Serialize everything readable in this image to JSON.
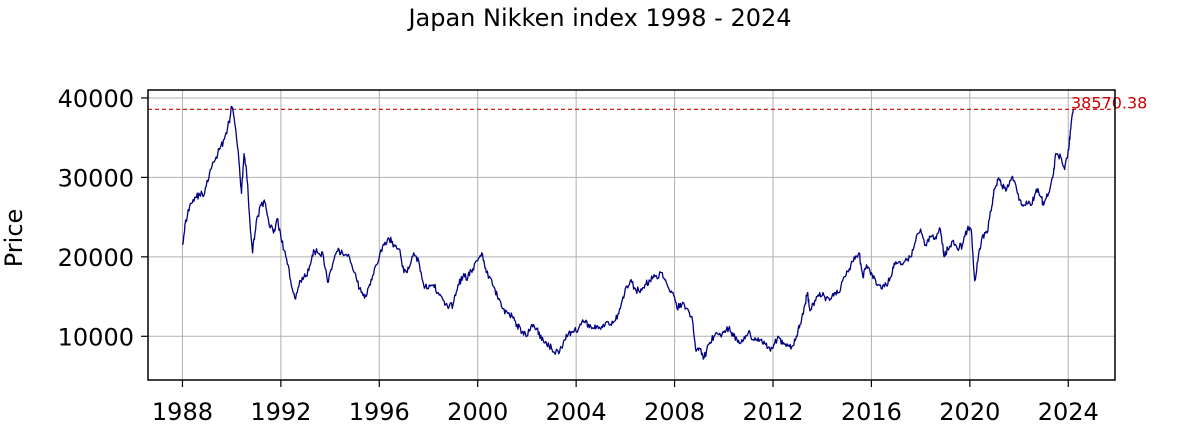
{
  "chart_data": {
    "type": "line",
    "title": "Japan Nikken index 1998 - 2024",
    "xlabel": "",
    "ylabel": "Price",
    "xlim": [
      1986.6,
      2025.9
    ],
    "ylim": [
      4500,
      41000
    ],
    "grid": true,
    "x_ticks": [
      1988,
      1992,
      1996,
      2000,
      2004,
      2008,
      2012,
      2016,
      2020,
      2024
    ],
    "x_tick_labels": [
      "1988",
      "1992",
      "1996",
      "2000",
      "2004",
      "2008",
      "2012",
      "2016",
      "2020",
      "2024"
    ],
    "y_ticks": [
      10000,
      20000,
      30000,
      40000
    ],
    "y_tick_labels": [
      "10000",
      "20000",
      "30000",
      "40000"
    ],
    "series": [
      {
        "color": "#000080",
        "points": [
          [
            1988.0,
            21500
          ],
          [
            1988.1,
            24000
          ],
          [
            1988.3,
            26500
          ],
          [
            1988.5,
            27500
          ],
          [
            1988.7,
            27800
          ],
          [
            1988.9,
            28000
          ],
          [
            1989.1,
            30500
          ],
          [
            1989.3,
            32000
          ],
          [
            1989.5,
            33500
          ],
          [
            1989.7,
            34800
          ],
          [
            1989.9,
            37000
          ],
          [
            1990.0,
            38900
          ],
          [
            1990.1,
            37500
          ],
          [
            1990.3,
            32000
          ],
          [
            1990.4,
            28000
          ],
          [
            1990.5,
            33000
          ],
          [
            1990.6,
            31000
          ],
          [
            1990.75,
            24000
          ],
          [
            1990.85,
            20500
          ],
          [
            1991.0,
            24500
          ],
          [
            1991.2,
            26500
          ],
          [
            1991.35,
            26800
          ],
          [
            1991.5,
            24500
          ],
          [
            1991.7,
            23000
          ],
          [
            1991.85,
            24800
          ],
          [
            1992.0,
            22500
          ],
          [
            1992.2,
            20000
          ],
          [
            1992.4,
            17000
          ],
          [
            1992.6,
            14700
          ],
          [
            1992.8,
            17000
          ],
          [
            1993.0,
            17500
          ],
          [
            1993.2,
            19000
          ],
          [
            1993.35,
            20800
          ],
          [
            1993.5,
            20500
          ],
          [
            1993.7,
            20500
          ],
          [
            1993.9,
            16800
          ],
          [
            1994.1,
            19000
          ],
          [
            1994.3,
            20700
          ],
          [
            1994.5,
            20500
          ],
          [
            1994.8,
            19800
          ],
          [
            1995.0,
            18000
          ],
          [
            1995.2,
            16000
          ],
          [
            1995.4,
            14800
          ],
          [
            1995.6,
            16500
          ],
          [
            1995.8,
            18500
          ],
          [
            1996.0,
            20000
          ],
          [
            1996.2,
            21500
          ],
          [
            1996.4,
            22300
          ],
          [
            1996.6,
            21500
          ],
          [
            1996.8,
            21000
          ],
          [
            1997.0,
            18000
          ],
          [
            1997.2,
            18500
          ],
          [
            1997.4,
            20500
          ],
          [
            1997.6,
            19500
          ],
          [
            1997.8,
            16500
          ],
          [
            1998.0,
            16000
          ],
          [
            1998.2,
            16500
          ],
          [
            1998.4,
            15500
          ],
          [
            1998.6,
            14500
          ],
          [
            1998.8,
            13500
          ],
          [
            1999.0,
            14000
          ],
          [
            1999.2,
            16500
          ],
          [
            1999.4,
            17500
          ],
          [
            1999.6,
            17500
          ],
          [
            1999.8,
            18500
          ],
          [
            2000.0,
            19500
          ],
          [
            2000.2,
            20300
          ],
          [
            2000.35,
            18000
          ],
          [
            2000.6,
            16500
          ],
          [
            2000.8,
            15000
          ],
          [
            2001.0,
            13500
          ],
          [
            2001.2,
            13000
          ],
          [
            2001.4,
            12500
          ],
          [
            2001.6,
            11500
          ],
          [
            2001.8,
            10500
          ],
          [
            2002.0,
            10000
          ],
          [
            2002.2,
            11500
          ],
          [
            2002.4,
            11000
          ],
          [
            2002.6,
            9500
          ],
          [
            2002.8,
            9000
          ],
          [
            2003.0,
            8500
          ],
          [
            2003.3,
            7800
          ],
          [
            2003.5,
            9500
          ],
          [
            2003.7,
            10500
          ],
          [
            2003.9,
            10500
          ],
          [
            2004.1,
            11000
          ],
          [
            2004.3,
            11800
          ],
          [
            2004.5,
            11500
          ],
          [
            2004.7,
            11000
          ],
          [
            2004.9,
            11000
          ],
          [
            2005.1,
            11500
          ],
          [
            2005.4,
            11500
          ],
          [
            2005.6,
            12000
          ],
          [
            2005.8,
            13500
          ],
          [
            2006.0,
            16000
          ],
          [
            2006.2,
            17000
          ],
          [
            2006.4,
            16000
          ],
          [
            2006.6,
            15500
          ],
          [
            2006.8,
            16500
          ],
          [
            2007.0,
            17000
          ],
          [
            2007.2,
            17500
          ],
          [
            2007.5,
            18000
          ],
          [
            2007.7,
            16500
          ],
          [
            2007.9,
            15500
          ],
          [
            2008.1,
            13500
          ],
          [
            2008.3,
            14000
          ],
          [
            2008.5,
            13500
          ],
          [
            2008.7,
            12500
          ],
          [
            2008.85,
            8500
          ],
          [
            2009.0,
            8500
          ],
          [
            2009.2,
            7300
          ],
          [
            2009.4,
            9000
          ],
          [
            2009.6,
            10000
          ],
          [
            2009.8,
            10200
          ],
          [
            2010.0,
            10500
          ],
          [
            2010.2,
            11000
          ],
          [
            2010.4,
            10000
          ],
          [
            2010.6,
            9500
          ],
          [
            2010.8,
            9500
          ],
          [
            2011.0,
            10500
          ],
          [
            2011.2,
            9600
          ],
          [
            2011.4,
            9800
          ],
          [
            2011.6,
            9000
          ],
          [
            2011.8,
            8600
          ],
          [
            2012.0,
            8500
          ],
          [
            2012.2,
            10000
          ],
          [
            2012.4,
            9000
          ],
          [
            2012.6,
            8800
          ],
          [
            2012.8,
            8800
          ],
          [
            2012.95,
            10000
          ],
          [
            2013.1,
            11500
          ],
          [
            2013.3,
            14000
          ],
          [
            2013.4,
            15500
          ],
          [
            2013.5,
            13200
          ],
          [
            2013.7,
            14500
          ],
          [
            2013.9,
            15500
          ],
          [
            2014.1,
            15000
          ],
          [
            2014.3,
            14500
          ],
          [
            2014.5,
            15500
          ],
          [
            2014.7,
            15500
          ],
          [
            2014.9,
            17500
          ],
          [
            2015.1,
            18500
          ],
          [
            2015.3,
            20000
          ],
          [
            2015.5,
            20500
          ],
          [
            2015.65,
            17500
          ],
          [
            2015.8,
            19000
          ],
          [
            2016.0,
            18000
          ],
          [
            2016.2,
            16500
          ],
          [
            2016.4,
            16000
          ],
          [
            2016.6,
            16500
          ],
          [
            2016.8,
            17500
          ],
          [
            2016.95,
            19000
          ],
          [
            2017.2,
            19000
          ],
          [
            2017.4,
            19800
          ],
          [
            2017.6,
            20000
          ],
          [
            2017.8,
            22000
          ],
          [
            2018.0,
            23500
          ],
          [
            2018.2,
            21500
          ],
          [
            2018.4,
            22500
          ],
          [
            2018.6,
            22500
          ],
          [
            2018.8,
            23500
          ],
          [
            2018.95,
            20000
          ],
          [
            2019.1,
            21000
          ],
          [
            2019.3,
            22000
          ],
          [
            2019.5,
            21000
          ],
          [
            2019.7,
            21500
          ],
          [
            2019.9,
            23500
          ],
          [
            2020.05,
            23500
          ],
          [
            2020.2,
            17000
          ],
          [
            2020.35,
            20000
          ],
          [
            2020.5,
            22500
          ],
          [
            2020.7,
            23000
          ],
          [
            2020.9,
            26500
          ],
          [
            2021.0,
            28500
          ],
          [
            2021.15,
            29800
          ],
          [
            2021.3,
            29000
          ],
          [
            2021.5,
            28500
          ],
          [
            2021.7,
            30000
          ],
          [
            2021.9,
            28500
          ],
          [
            2022.1,
            26500
          ],
          [
            2022.3,
            27000
          ],
          [
            2022.5,
            26500
          ],
          [
            2022.7,
            28500
          ],
          [
            2022.9,
            27500
          ],
          [
            2023.0,
            26500
          ],
          [
            2023.2,
            28000
          ],
          [
            2023.4,
            30500
          ],
          [
            2023.5,
            33000
          ],
          [
            2023.7,
            32500
          ],
          [
            2023.85,
            31000
          ],
          [
            2024.0,
            33500
          ],
          [
            2024.1,
            36000
          ],
          [
            2024.2,
            38570.38
          ]
        ]
      }
    ],
    "annotations": [
      {
        "text": "38570.38",
        "y": 38570.38,
        "color": "#cc0000",
        "linestyle": "dashed"
      }
    ]
  }
}
